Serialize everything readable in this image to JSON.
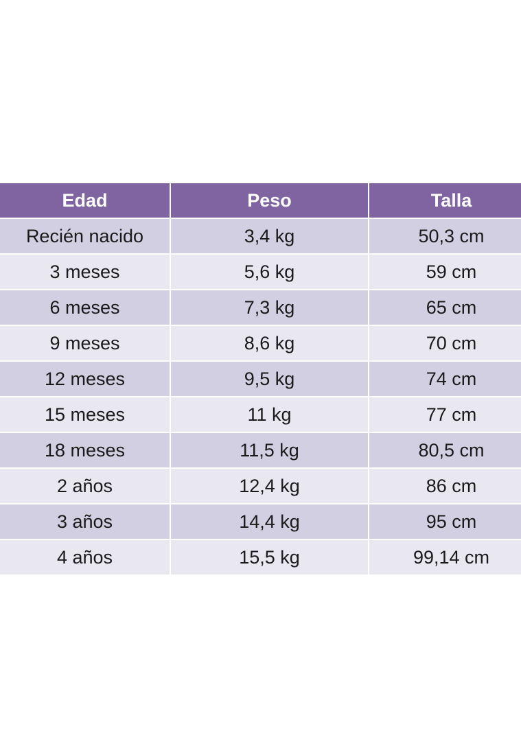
{
  "chart_data": {
    "type": "table",
    "colors": {
      "header_bg": "#8064a2",
      "header_text": "#ffffff",
      "row_odd_bg": "#d3cfe2",
      "row_even_bg": "#e9e7f0",
      "text": "#1a1a1a"
    },
    "columns": [
      "Edad",
      "Peso",
      "Talla"
    ],
    "rows": [
      [
        "Recién nacido",
        "3,4 kg",
        "50,3 cm"
      ],
      [
        "3 meses",
        "5,6 kg",
        "59 cm"
      ],
      [
        "6 meses",
        "7,3 kg",
        "65 cm"
      ],
      [
        "9 meses",
        "8,6 kg",
        "70 cm"
      ],
      [
        "12 meses",
        "9,5 kg",
        "74 cm"
      ],
      [
        "15 meses",
        "11 kg",
        "77 cm"
      ],
      [
        "18 meses",
        "11,5 kg",
        "80,5 cm"
      ],
      [
        "2 años",
        "12,4 kg",
        "86 cm"
      ],
      [
        "3 años",
        "14,4 kg",
        "95 cm"
      ],
      [
        "4 años",
        "15,5 kg",
        "99,14 cm"
      ]
    ]
  }
}
